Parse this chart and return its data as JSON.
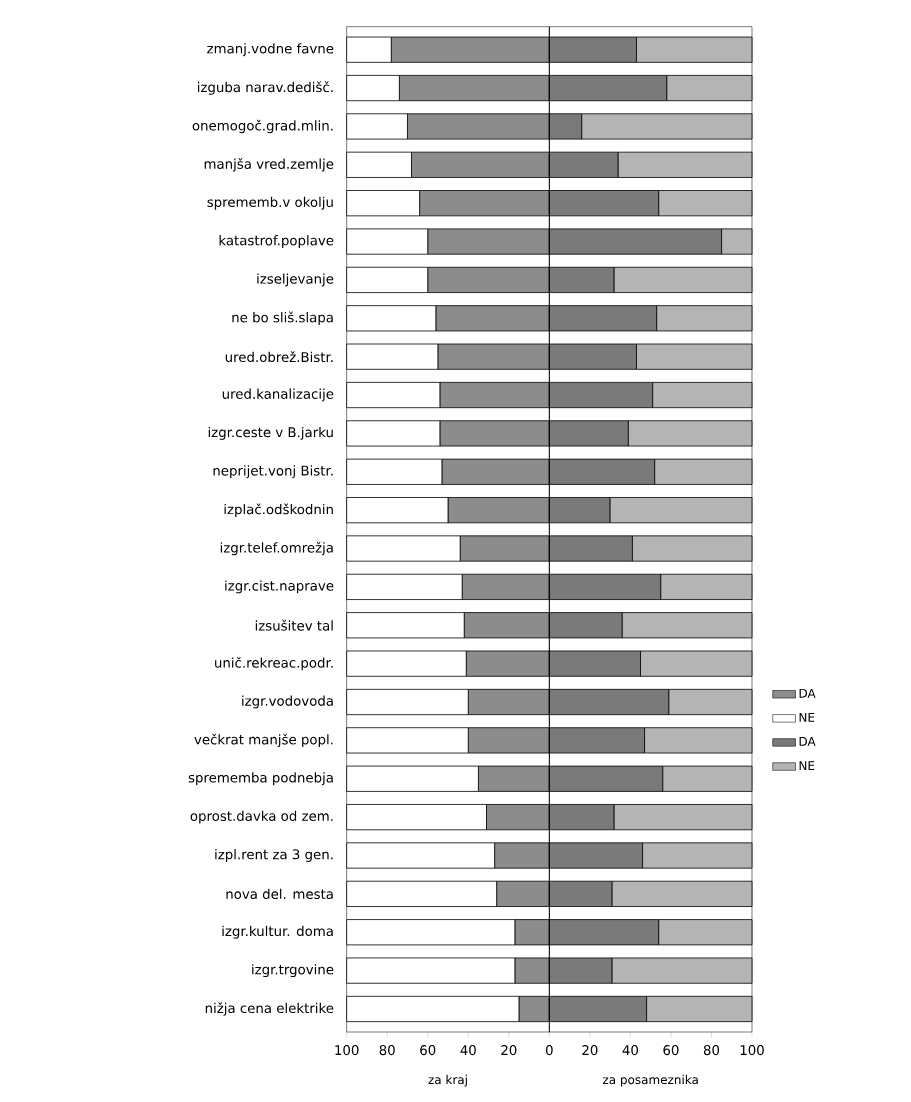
{
  "chart_data": {
    "type": "bar",
    "orientation": "horizontal",
    "stacked": true,
    "categories": [
      "zmanj.vodne favne",
      "izguba narav.dedišč.",
      "onemogoč.grad.mlin.",
      "manjša vred.zemlje",
      "sprememb.v okolju",
      "katastrof.poplave",
      "izseljevanje",
      "ne bo sliš.slapa",
      "ured.obrež.Bistr.",
      "ured.kanalizacije",
      "izgr.ceste v B.jarku",
      "neprijet.vonj Bistr.",
      "izplač.odškodnin",
      "izgr.telef.omrežja",
      "izgr.cist.naprave",
      "izsušitev tal",
      "unič.rekreac.podr.",
      "izgr.vodovoda",
      "večkrat manjše popl.",
      "sprememba podnebja",
      "oprost.davka od zem.",
      "izpl.rent za 3 gen.",
      "nova del. mesta",
      "izgr.kultur. doma",
      "izgr.trgovine",
      "nižja cena elektrike"
    ],
    "series": [
      {
        "name": "DA",
        "color": "#8c8c8c",
        "values": [
          -78,
          -74,
          -70,
          -68,
          -64,
          -60,
          -60,
          -56,
          -55,
          -54,
          -54,
          -53,
          -50,
          -44,
          -43,
          -42,
          -41,
          -40,
          -40,
          -35,
          -31,
          -27,
          -26,
          -17,
          -17,
          -15
        ]
      },
      {
        "name": "NE",
        "color": "#ffffff",
        "values": [
          -22,
          -26,
          -30,
          -32,
          -36,
          -40,
          -40,
          -44,
          -45,
          -46,
          -46,
          -47,
          -50,
          -56,
          -57,
          -58,
          -59,
          -60,
          -60,
          -65,
          -69,
          -73,
          -74,
          -83,
          -83,
          -85
        ]
      },
      {
        "name": "DA",
        "color": "#7a7a7a",
        "values": [
          43,
          58,
          16,
          34,
          54,
          85,
          32,
          53,
          43,
          51,
          39,
          52,
          30,
          41,
          55,
          36,
          45,
          59,
          47,
          56,
          32,
          46,
          31,
          54,
          31,
          48
        ]
      },
      {
        "name": "NE",
        "color": "#b4b4b4",
        "values": [
          57,
          42,
          84,
          66,
          46,
          15,
          68,
          47,
          57,
          49,
          61,
          48,
          70,
          59,
          45,
          64,
          55,
          41,
          53,
          44,
          68,
          54,
          69,
          46,
          69,
          52
        ]
      }
    ],
    "xlim": [
      -100,
      100
    ],
    "xticks": [
      {
        "value": -100,
        "label": "100"
      },
      {
        "value": -80,
        "label": "80"
      },
      {
        "value": -60,
        "label": "60"
      },
      {
        "value": -40,
        "label": "40"
      },
      {
        "value": -20,
        "label": "20"
      },
      0,
      20,
      40,
      60,
      80,
      100
    ],
    "ref_lines": [
      {
        "axis": "x",
        "value": 0
      }
    ],
    "annotations": [
      "za kraj",
      "za posameznika"
    ],
    "legend": "right",
    "grid": false
  }
}
